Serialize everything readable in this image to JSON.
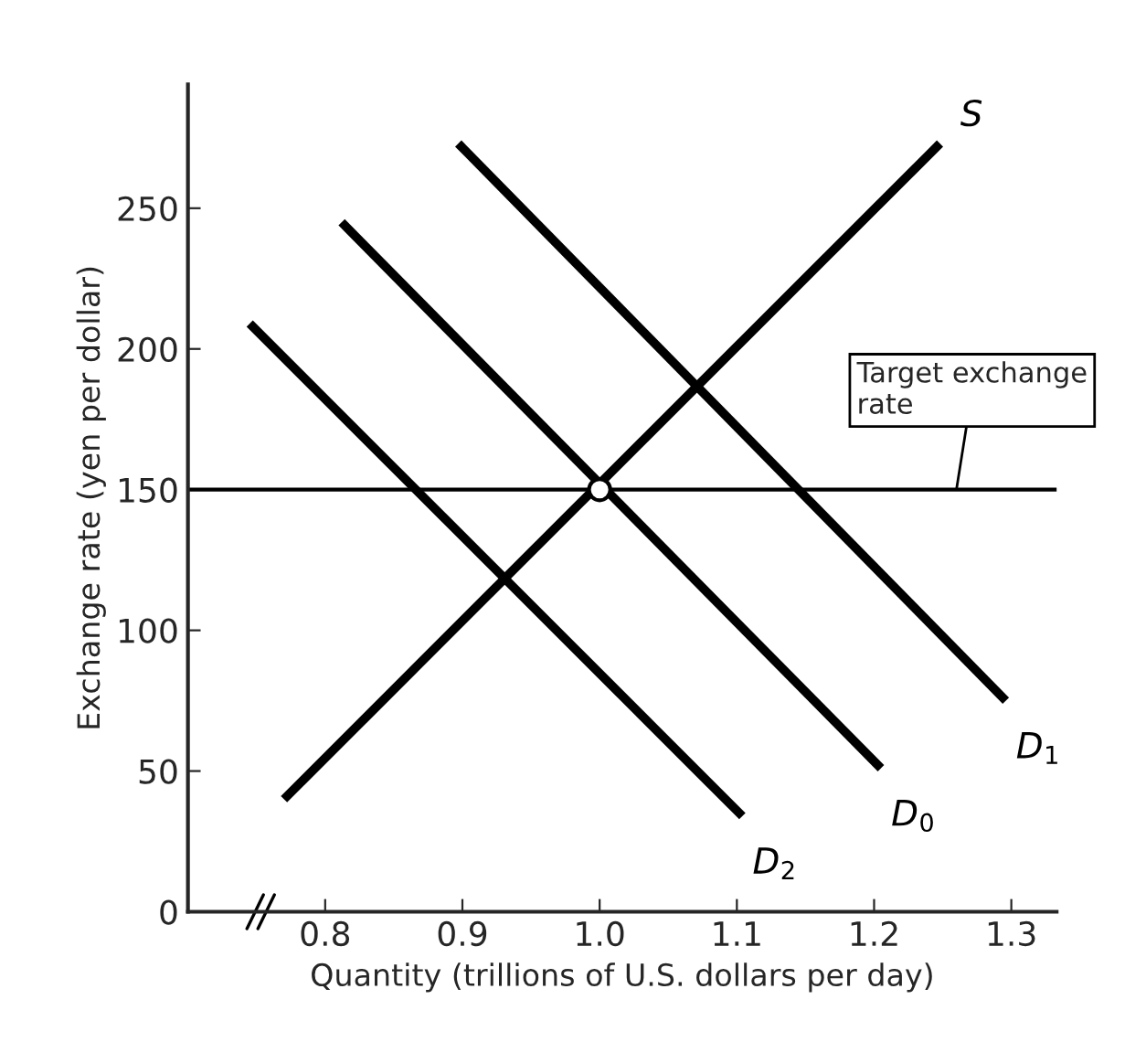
{
  "chart_data": {
    "type": "line",
    "xlabel": "Quantity (trillions of U.S. dollars per day)",
    "ylabel": "Exchange rate (yen per dollar)",
    "xlim": [
      0.7,
      1.333
    ],
    "xticks": [
      0.8,
      0.9,
      {
        "value": 1.0,
        "label": "1.0"
      },
      1.1,
      1.2,
      1.3
    ],
    "ylim": [
      0,
      294
    ],
    "yticks": [
      0,
      50,
      100,
      150,
      200,
      250
    ],
    "grid": false,
    "legend": false,
    "line_style": "solid",
    "marker": "none",
    "series": [
      {
        "name": "S",
        "color": "#000000",
        "x": [
          0.77,
          1.248
        ],
        "values": [
          40,
          273
        ]
      },
      {
        "name": "D$_{1}$",
        "color": "#000000",
        "x": [
          0.897,
          1.296
        ],
        "values": [
          273,
          75
        ]
      },
      {
        "name": "D$_{0}$",
        "color": "#000000",
        "x": [
          0.812,
          1.205
        ],
        "values": [
          245,
          51
        ]
      },
      {
        "name": "D$_{2}$",
        "color": "#000000",
        "x": [
          0.745,
          1.104
        ],
        "values": [
          209,
          34
        ]
      },
      {
        "type": "scatter",
        "color": "#000000",
        "x": [
          1.0
        ],
        "values": [
          150
        ],
        "marker": "circle"
      }
    ],
    "ref_lines": [
      {
        "axis": "y",
        "value": 150,
        "color": "#000000"
      }
    ],
    "annotations": [
      {
        "text": "Target exchange\nrate",
        "x": 1.26,
        "y": 150
      }
    ]
  }
}
